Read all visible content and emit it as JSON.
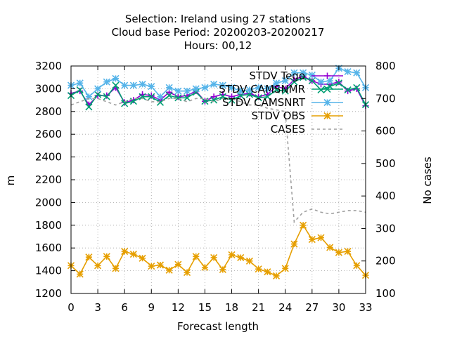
{
  "chart_data": {
    "type": "line",
    "title_lines": [
      "Selection: Ireland using    27 stations",
      "Cloud base   Period: 20200203-20200217",
      "Hours:  00,12"
    ],
    "xlabel": "Forecast length",
    "ylabel": "m",
    "y2label": "No cases",
    "xlim": [
      0,
      33
    ],
    "ylim": [
      1200,
      3200
    ],
    "y2lim": [
      100,
      800
    ],
    "xticks": [
      0,
      3,
      6,
      9,
      12,
      15,
      18,
      21,
      24,
      27,
      30,
      33
    ],
    "yticks": [
      1200,
      1400,
      1600,
      1800,
      2000,
      2200,
      2400,
      2600,
      2800,
      3000,
      3200
    ],
    "y2ticks": [
      100,
      200,
      300,
      400,
      500,
      600,
      700,
      800
    ],
    "grid": true,
    "legend_position": "top-right",
    "x": [
      0,
      1,
      2,
      3,
      4,
      5,
      6,
      7,
      8,
      9,
      10,
      11,
      12,
      13,
      14,
      15,
      16,
      17,
      18,
      19,
      20,
      21,
      22,
      23,
      24,
      25,
      26,
      27,
      28,
      29,
      30,
      31,
      32,
      33
    ],
    "series": [
      {
        "name": "STDV Tego",
        "axis": "y1",
        "color": "#9400d3",
        "marker": "plus",
        "values": [
          2960,
          2980,
          2860,
          2940,
          2940,
          3010,
          2880,
          2900,
          2950,
          2940,
          2900,
          2970,
          2930,
          2940,
          2980,
          2890,
          2930,
          2950,
          2930,
          2950,
          2960,
          2930,
          2950,
          3020,
          3000,
          3080,
          3110,
          3070,
          3040,
          3040,
          3060,
          2980,
          3000,
          2850
        ]
      },
      {
        "name": "STDV CAMSNMR",
        "axis": "y1",
        "color": "#009e73",
        "marker": "x",
        "values": [
          2940,
          2990,
          2840,
          2950,
          2930,
          3030,
          2870,
          2890,
          2930,
          2930,
          2880,
          2940,
          2920,
          2920,
          2970,
          2890,
          2900,
          2930,
          2900,
          2940,
          2950,
          2920,
          2930,
          2990,
          2980,
          3060,
          3100,
          3070,
          2990,
          3020,
          3050,
          2990,
          3010,
          2860
        ]
      },
      {
        "name": "STDV CAMSNRT",
        "axis": "y1",
        "color": "#56b4e9",
        "marker": "star",
        "values": [
          3030,
          3050,
          2930,
          3000,
          3060,
          3090,
          3030,
          3030,
          3040,
          3020,
          2930,
          3010,
          2980,
          2980,
          3000,
          3010,
          3040,
          3030,
          3010,
          2980,
          2990,
          3010,
          3000,
          3050,
          3070,
          3140,
          3140,
          3120,
          3060,
          3070,
          3180,
          3150,
          3140,
          3010
        ]
      },
      {
        "name": "STDV OBS",
        "axis": "y1",
        "color": "#e69f00",
        "marker": "asterisk",
        "values": [
          1445,
          1370,
          1520,
          1445,
          1525,
          1420,
          1570,
          1545,
          1510,
          1440,
          1450,
          1405,
          1455,
          1385,
          1525,
          1430,
          1515,
          1410,
          1540,
          1515,
          1485,
          1415,
          1390,
          1355,
          1420,
          1635,
          1800,
          1675,
          1690,
          1605,
          1560,
          1570,
          1445,
          1360
        ]
      },
      {
        "name": "CASES",
        "axis": "y2",
        "color": "#a0a0a0",
        "marker": "none",
        "dashed": true,
        "values": [
          680,
          690,
          700,
          700,
          690,
          680,
          690,
          700,
          700,
          690,
          690,
          700,
          700,
          690,
          700,
          700,
          690,
          700,
          700,
          690,
          680,
          680,
          670,
          665,
          660,
          320,
          350,
          360,
          350,
          345,
          350,
          355,
          355,
          350
        ]
      }
    ]
  }
}
